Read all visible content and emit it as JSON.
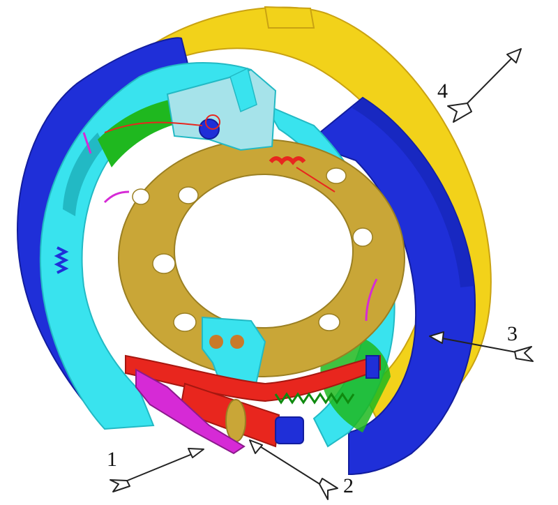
{
  "figure": {
    "callouts": [
      {
        "id": "callout-1",
        "label": "1"
      },
      {
        "id": "callout-2",
        "label": "2"
      },
      {
        "id": "callout-3",
        "label": "3"
      },
      {
        "id": "callout-4",
        "label": "4"
      }
    ],
    "colors": {
      "backing_plate": "#f2d21a",
      "backing_plate_shade": "#c9a212",
      "brake_shoe_lining": "#1f2fd8",
      "brake_shoe_lining_dark": "#121d9e",
      "shoe_web": "#39e3ee",
      "shoe_web_shade": "#22b9c4",
      "hub_flange": "#c9a637",
      "spring_red": "#e8261e",
      "adjuster_magenta": "#d62ad6",
      "green_plate": "#1fb81f",
      "anchor_bracket": "#a6e3ea"
    }
  }
}
